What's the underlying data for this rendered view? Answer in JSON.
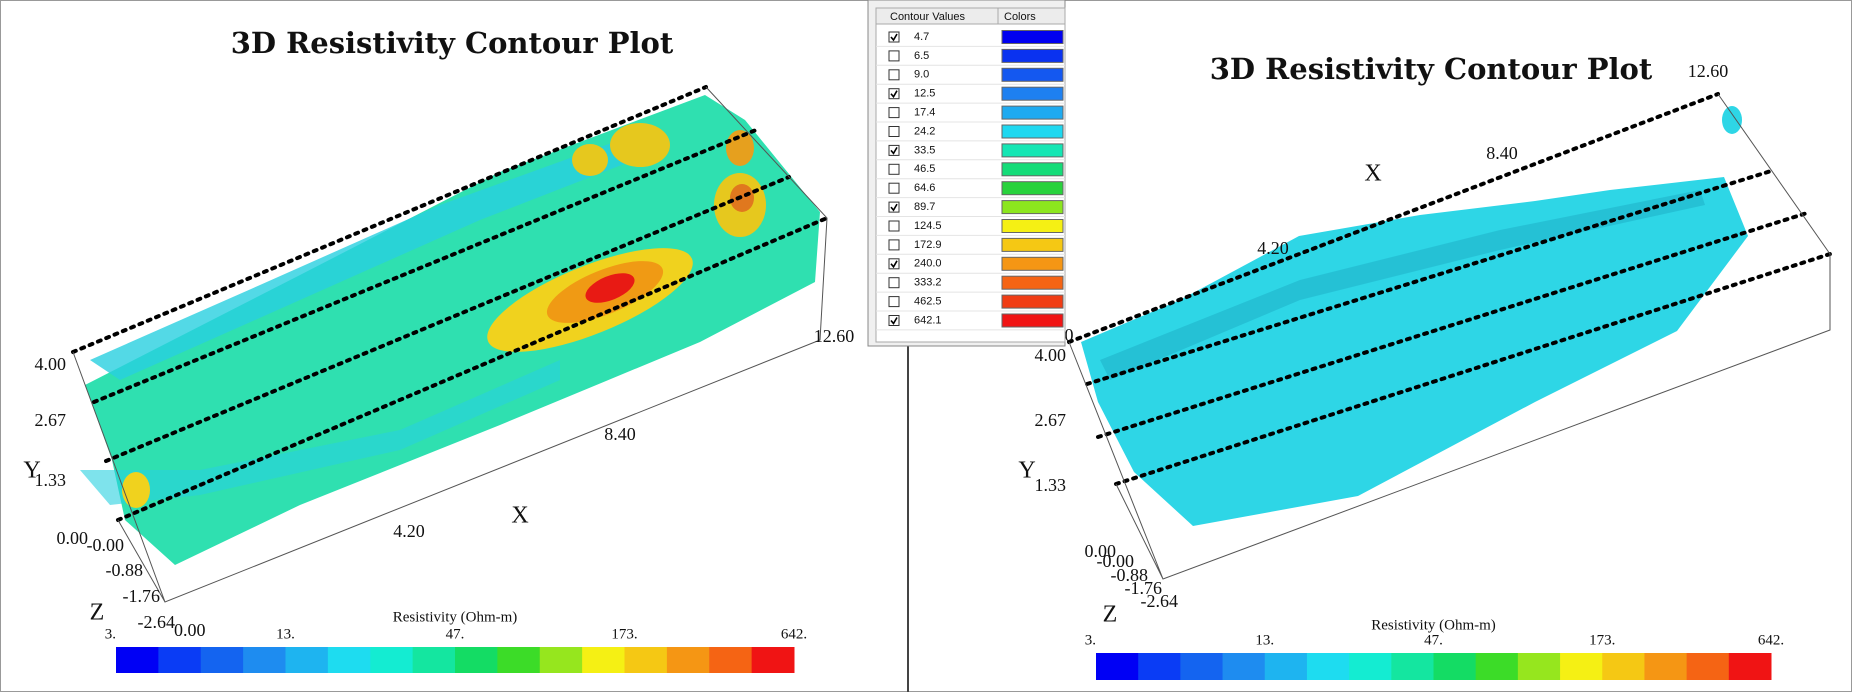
{
  "left_panel": {
    "title": "3D Resistivity Contour Plot",
    "y_axis": {
      "label": "Y",
      "ticks": [
        "4.00",
        "2.67",
        "1.33",
        "0.00"
      ]
    },
    "z_axis": {
      "label": "Z",
      "ticks": [
        "-0.00",
        "-0.88",
        "-1.76",
        "-2.64"
      ]
    },
    "x_axis": {
      "label": "X",
      "ticks": [
        "0.00",
        "4.20",
        "8.40",
        "12.60"
      ]
    },
    "colorbar": {
      "title": "Resistivity (Ohm-m)",
      "labels": [
        "3.",
        "13.",
        "47.",
        "173.",
        "642."
      ],
      "colors": [
        "#0000f5",
        "#0a3cf5",
        "#1464f0",
        "#1e8cf0",
        "#1eb4f0",
        "#1edcf0",
        "#14ecd2",
        "#14e6a0",
        "#14dc64",
        "#3cdc28",
        "#96e61e",
        "#f5f014",
        "#f5c814",
        "#f59614",
        "#f56414",
        "#f01414"
      ]
    }
  },
  "right_panel": {
    "title": "3D Resistivity Contour Plot",
    "y_axis": {
      "label": "Y",
      "ticks": [
        "4.00",
        "2.67",
        "1.33",
        "0.00"
      ]
    },
    "z_axis": {
      "label": "Z",
      "ticks": [
        "-0.00",
        "-0.88",
        "-1.76",
        "-2.64"
      ]
    },
    "x_axis": {
      "label": "X",
      "ticks": [
        "0",
        "4.20",
        "8.40",
        "12.60"
      ]
    },
    "colorbar": {
      "title": "Resistivity (Ohm-m)",
      "labels": [
        "3.",
        "13.",
        "47.",
        "173.",
        "642."
      ],
      "colors": [
        "#0000f5",
        "#0a3cf5",
        "#1464f0",
        "#1e8cf0",
        "#1eb4f0",
        "#1edcf0",
        "#14ecd2",
        "#14e6a0",
        "#14dc64",
        "#3cdc28",
        "#96e61e",
        "#f5f014",
        "#f5c814",
        "#f59614",
        "#f56414",
        "#f01414"
      ]
    }
  },
  "contour_table": {
    "headers": [
      "Contour Values",
      "Colors"
    ],
    "rows": [
      {
        "value": "4.7",
        "checked": true,
        "color": "#0000f0"
      },
      {
        "value": "6.5",
        "checked": false,
        "color": "#0a32f0"
      },
      {
        "value": "9.0",
        "checked": false,
        "color": "#1458f0"
      },
      {
        "value": "12.5",
        "checked": true,
        "color": "#1e80f0"
      },
      {
        "value": "17.4",
        "checked": false,
        "color": "#1eaaf0"
      },
      {
        "value": "24.2",
        "checked": false,
        "color": "#1ed8f0"
      },
      {
        "value": "33.5",
        "checked": true,
        "color": "#14e6b4"
      },
      {
        "value": "46.5",
        "checked": false,
        "color": "#14dc78"
      },
      {
        "value": "64.6",
        "checked": false,
        "color": "#28d23c"
      },
      {
        "value": "89.7",
        "checked": true,
        "color": "#8ce61e"
      },
      {
        "value": "124.5",
        "checked": false,
        "color": "#f5f014"
      },
      {
        "value": "172.9",
        "checked": false,
        "color": "#f5c814"
      },
      {
        "value": "240.0",
        "checked": true,
        "color": "#f59614"
      },
      {
        "value": "333.2",
        "checked": false,
        "color": "#f56414"
      },
      {
        "value": "462.5",
        "checked": false,
        "color": "#f03c14"
      },
      {
        "value": "642.1",
        "checked": true,
        "color": "#f01414"
      }
    ]
  }
}
